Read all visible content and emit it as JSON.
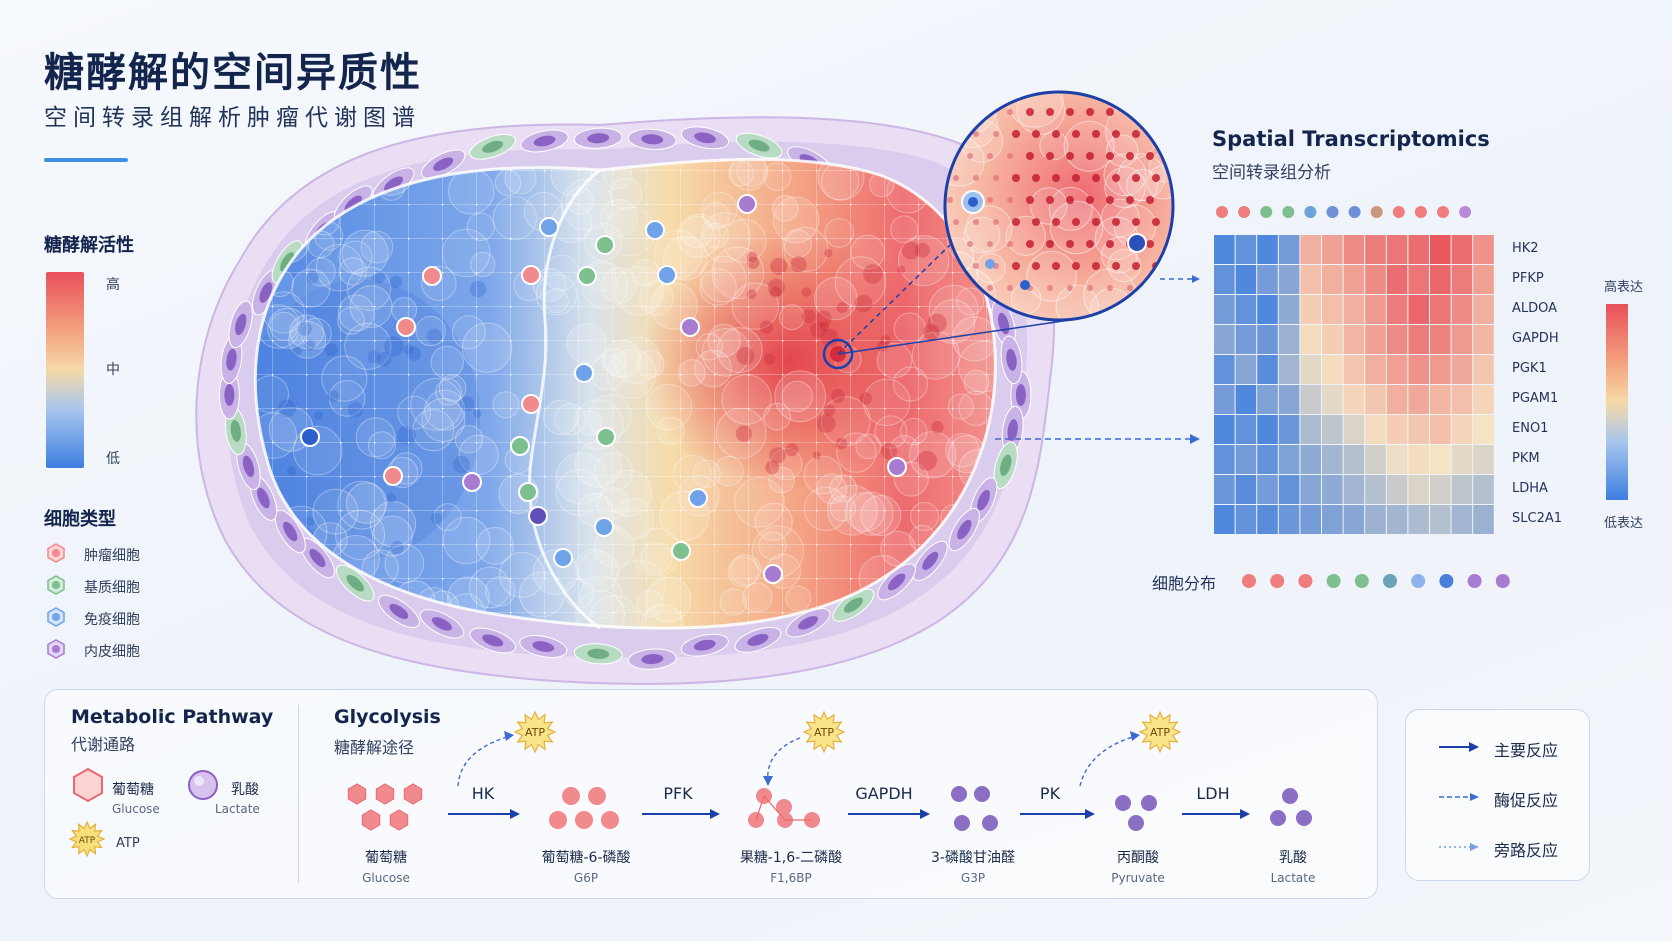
{
  "header": {
    "title": "糖酵解的空间异质性",
    "subtitle": "空间转录组解析肿瘤代谢图谱"
  },
  "activity_legend": {
    "heading": "糖酵解活性",
    "high": "高",
    "mid": "中",
    "low": "低",
    "colors": [
      "#e8505a",
      "#f6d9a8",
      "#3d7ee0"
    ]
  },
  "cell_types": {
    "heading": "细胞类型",
    "items": [
      {
        "label": "肿瘤细胞",
        "color": "#f08a8c",
        "icon": "tumor-cell-icon"
      },
      {
        "label": "基质细胞",
        "color": "#7dbf8e",
        "icon": "stromal-cell-icon"
      },
      {
        "label": "免疫细胞",
        "color": "#6fa2e8",
        "icon": "immune-cell-icon"
      },
      {
        "label": "内皮细胞",
        "color": "#a77cd0",
        "icon": "endothelial-cell-icon"
      }
    ]
  },
  "spatial": {
    "title": "Spatial Transcriptomics",
    "subtitle": "空间转录组分析",
    "genes": [
      "HK2",
      "PFKP",
      "ALDOA",
      "GAPDH",
      "PGK1",
      "PGAM1",
      "ENO1",
      "PKM",
      "LDHA",
      "SLC2A1"
    ],
    "heatmap": [
      [
        -0.9,
        -0.8,
        -0.9,
        -0.7,
        0.35,
        0.45,
        0.6,
        0.7,
        0.75,
        0.8,
        0.95,
        0.8,
        0.55
      ],
      [
        -0.8,
        -0.9,
        -0.7,
        -0.6,
        0.25,
        0.35,
        0.45,
        0.6,
        0.8,
        0.75,
        0.85,
        0.7,
        0.45
      ],
      [
        -0.7,
        -0.8,
        -0.9,
        -0.55,
        0.15,
        0.25,
        0.35,
        0.5,
        0.7,
        0.85,
        0.75,
        0.6,
        0.35
      ],
      [
        -0.6,
        -0.7,
        -0.75,
        -0.5,
        0.05,
        0.15,
        0.3,
        0.45,
        0.6,
        0.7,
        0.65,
        0.5,
        0.3
      ],
      [
        -0.8,
        -0.6,
        -0.85,
        -0.45,
        -0.1,
        0.05,
        0.2,
        0.35,
        0.45,
        0.55,
        0.5,
        0.4,
        0.2
      ],
      [
        -0.7,
        -0.9,
        -0.65,
        -0.6,
        -0.25,
        -0.1,
        0.1,
        0.2,
        0.35,
        0.4,
        0.3,
        0.25,
        0.1
      ],
      [
        -0.9,
        -0.8,
        -0.9,
        -0.75,
        -0.4,
        -0.3,
        -0.15,
        0.05,
        0.15,
        0.2,
        0.25,
        0.1,
        0.0
      ],
      [
        -0.8,
        -0.7,
        -0.8,
        -0.65,
        -0.55,
        -0.45,
        -0.35,
        -0.2,
        -0.05,
        0.05,
        0.0,
        -0.1,
        -0.15
      ],
      [
        -0.75,
        -0.85,
        -0.7,
        -0.8,
        -0.6,
        -0.55,
        -0.45,
        -0.35,
        -0.25,
        -0.15,
        -0.2,
        -0.3,
        -0.35
      ],
      [
        -0.9,
        -0.8,
        -0.85,
        -0.75,
        -0.7,
        -0.65,
        -0.6,
        -0.5,
        -0.45,
        -0.4,
        -0.35,
        -0.45,
        -0.5
      ]
    ],
    "top_dots": [
      "#f07d7d",
      "#f07d7d",
      "#7dbf8e",
      "#7dbf8e",
      "#6aa4d8",
      "#6f8fd8",
      "#6f8fd8",
      "#c9967e",
      "#f07d7d",
      "#f07d7d",
      "#f07d7d",
      "#b88ad6"
    ],
    "colorbar_high": "高表达",
    "colorbar_low": "低表达",
    "cell_distribution_label": "细胞分布",
    "cell_distribution_dots": [
      "#f07d7d",
      "#f07d7d",
      "#f07d7d",
      "#7dbf8e",
      "#7dbf8e",
      "#6aa4b8",
      "#8fb4ec",
      "#4a7fd8",
      "#a77cd0",
      "#a77cd0"
    ]
  },
  "metabolic": {
    "heading": "Metabolic Pathway",
    "subheading": "代谢通路",
    "legend": [
      {
        "zh": "葡萄糖",
        "en": "Glucose",
        "icon": "glucose-hexagon-icon"
      },
      {
        "zh": "乳酸",
        "en": "Lactate",
        "icon": "lactate-circle-icon"
      },
      {
        "zh": "ATP",
        "en": "",
        "icon": "atp-burst-icon"
      }
    ]
  },
  "glycolysis": {
    "heading": "Glycolysis",
    "subheading": "糖酵解途径",
    "atp_label": "ATP",
    "steps": [
      {
        "zh": "葡萄糖",
        "en": "Glucose"
      },
      {
        "zh": "葡萄糖-6-磷酸",
        "en": "G6P"
      },
      {
        "zh": "果糖-1,6-二磷酸",
        "en": "F1,6BP"
      },
      {
        "zh": "3-磷酸甘油醛",
        "en": "G3P"
      },
      {
        "zh": "丙酮酸",
        "en": "Pyruvate"
      },
      {
        "zh": "乳酸",
        "en": "Lactate"
      }
    ],
    "enzymes": [
      "HK",
      "PFK",
      "GAPDH",
      "PK",
      "LDH"
    ]
  },
  "arrow_legend": {
    "main": "主要反应",
    "enzyme": "酶促反应",
    "bypass": "旁路反应"
  }
}
